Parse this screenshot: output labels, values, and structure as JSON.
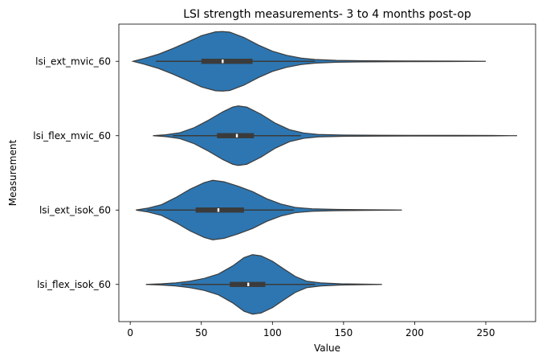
{
  "chart_data": {
    "type": "violin",
    "orientation": "horizontal",
    "title": "LSI strength measurements- 3 to 4 months post-op",
    "xlabel": "Value",
    "ylabel": "Measurement",
    "xlim": [
      -8,
      285
    ],
    "xticks": [
      0,
      50,
      100,
      150,
      200,
      250
    ],
    "grid": false,
    "colors": {
      "violin": "#2d76b1",
      "edge": "#3b3b3b",
      "median": "#ffffff"
    },
    "categories": [
      "lsi_ext_mvic_60",
      "lsi_flex_mvic_60",
      "lsi_ext_isok_60",
      "lsi_flex_isok_60"
    ],
    "series": [
      {
        "category": "lsi_ext_mvic_60",
        "min": 2,
        "max": 250,
        "whisker_low": 18,
        "q1": 50,
        "median": 65,
        "q3": 86,
        "whisker_high": 130,
        "density": [
          [
            2,
            0.0
          ],
          [
            10,
            0.1
          ],
          [
            20,
            0.24
          ],
          [
            30,
            0.43
          ],
          [
            40,
            0.64
          ],
          [
            50,
            0.86
          ],
          [
            60,
            0.99
          ],
          [
            65,
            1.0
          ],
          [
            70,
            0.98
          ],
          [
            80,
            0.8
          ],
          [
            90,
            0.55
          ],
          [
            100,
            0.34
          ],
          [
            110,
            0.2
          ],
          [
            120,
            0.11
          ],
          [
            130,
            0.06
          ],
          [
            145,
            0.03
          ],
          [
            160,
            0.02
          ],
          [
            180,
            0.015
          ],
          [
            200,
            0.01
          ],
          [
            225,
            0.008
          ],
          [
            250,
            0.0
          ]
        ]
      },
      {
        "category": "lsi_flex_mvic_60",
        "min": 16,
        "max": 272,
        "whisker_low": 30,
        "q1": 61,
        "median": 75,
        "q3": 87,
        "whisker_high": 120,
        "density": [
          [
            16,
            0.0
          ],
          [
            25,
            0.03
          ],
          [
            35,
            0.1
          ],
          [
            45,
            0.27
          ],
          [
            55,
            0.52
          ],
          [
            65,
            0.8
          ],
          [
            72,
            0.96
          ],
          [
            76,
            1.0
          ],
          [
            82,
            0.96
          ],
          [
            92,
            0.72
          ],
          [
            102,
            0.42
          ],
          [
            112,
            0.2
          ],
          [
            122,
            0.09
          ],
          [
            132,
            0.04
          ],
          [
            150,
            0.02
          ],
          [
            175,
            0.015
          ],
          [
            200,
            0.01
          ],
          [
            230,
            0.01
          ],
          [
            255,
            0.007
          ],
          [
            272,
            0.0
          ]
        ]
      },
      {
        "category": "lsi_ext_isok_60",
        "min": 4,
        "max": 191,
        "whisker_low": 12,
        "q1": 46,
        "median": 62,
        "q3": 80,
        "whisker_high": 115,
        "density": [
          [
            4,
            0.0
          ],
          [
            12,
            0.06
          ],
          [
            22,
            0.18
          ],
          [
            32,
            0.42
          ],
          [
            42,
            0.7
          ],
          [
            52,
            0.92
          ],
          [
            58,
            1.0
          ],
          [
            66,
            0.95
          ],
          [
            76,
            0.8
          ],
          [
            86,
            0.62
          ],
          [
            96,
            0.38
          ],
          [
            106,
            0.2
          ],
          [
            116,
            0.09
          ],
          [
            128,
            0.04
          ],
          [
            145,
            0.02
          ],
          [
            165,
            0.01
          ],
          [
            191,
            0.0
          ]
        ]
      },
      {
        "category": "lsi_flex_isok_60",
        "min": 11,
        "max": 177,
        "whisker_low": 36,
        "q1": 70,
        "median": 83,
        "q3": 95,
        "whisker_high": 130,
        "density": [
          [
            11,
            0.0
          ],
          [
            22,
            0.02
          ],
          [
            32,
            0.05
          ],
          [
            42,
            0.11
          ],
          [
            52,
            0.2
          ],
          [
            62,
            0.35
          ],
          [
            72,
            0.62
          ],
          [
            80,
            0.9
          ],
          [
            86,
            1.0
          ],
          [
            92,
            0.96
          ],
          [
            100,
            0.78
          ],
          [
            108,
            0.52
          ],
          [
            116,
            0.27
          ],
          [
            124,
            0.11
          ],
          [
            134,
            0.05
          ],
          [
            148,
            0.02
          ],
          [
            162,
            0.01
          ],
          [
            177,
            0.0
          ]
        ]
      }
    ]
  }
}
